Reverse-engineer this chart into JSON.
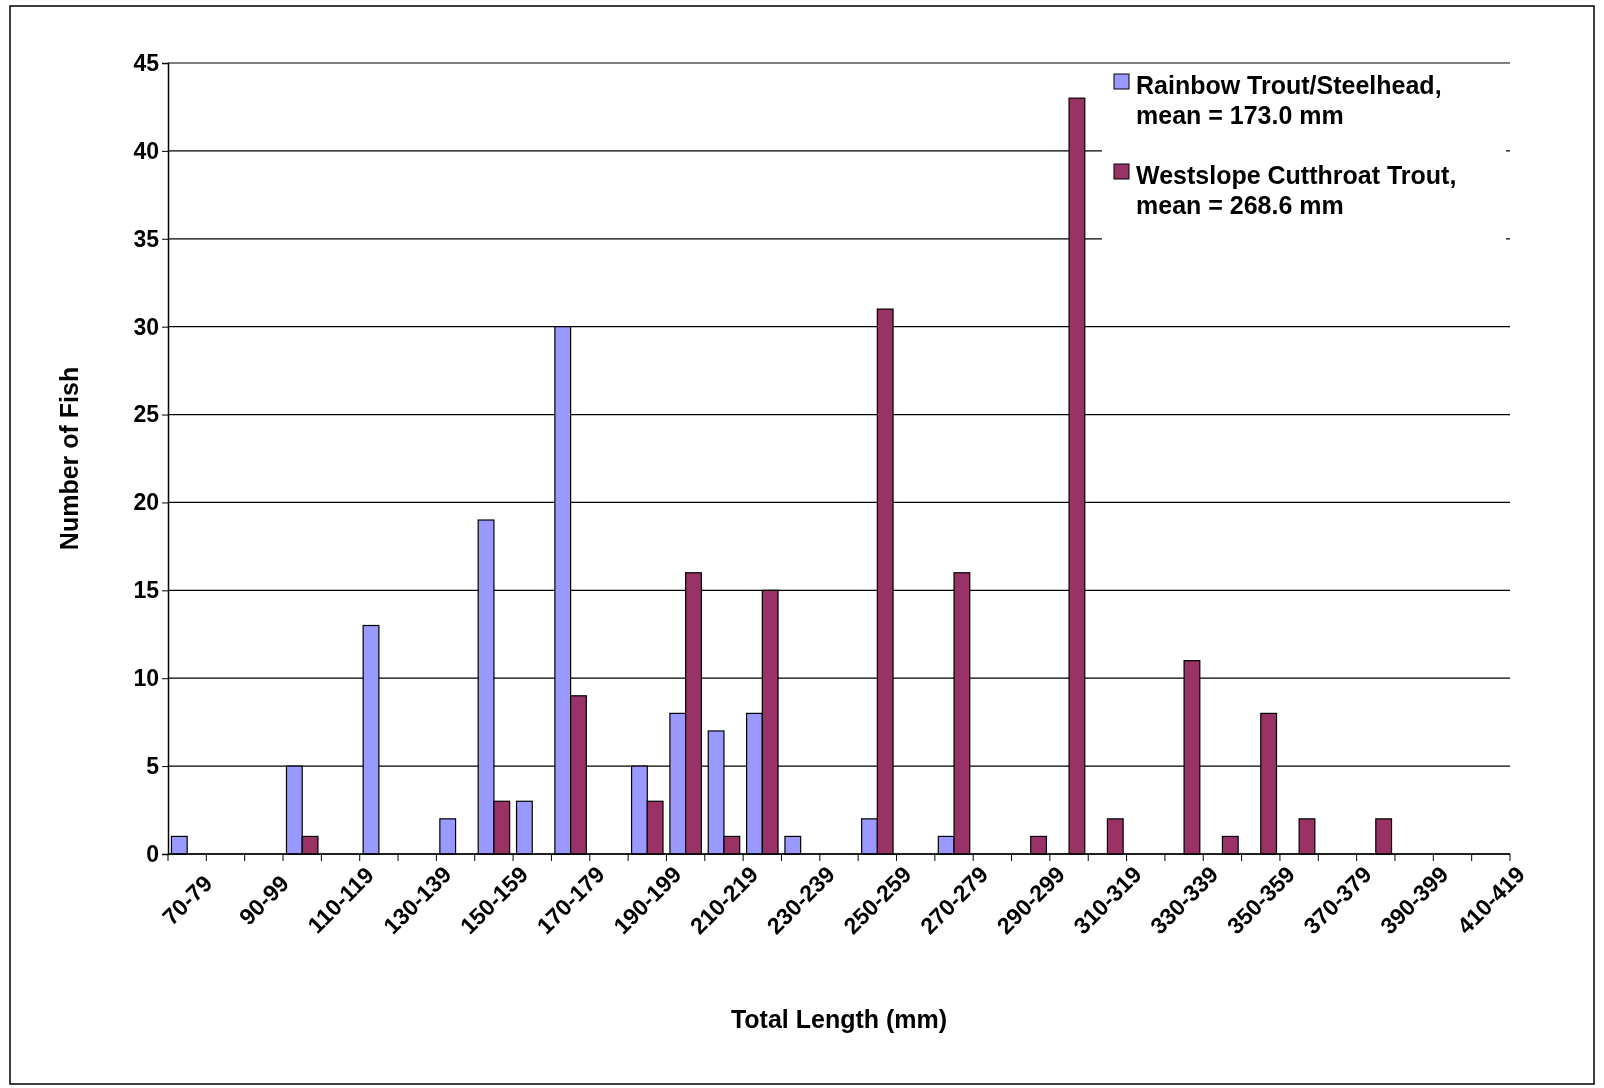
{
  "chart_data": {
    "type": "bar",
    "xlabel": "Total Length (mm)",
    "ylabel": "Number of Fish",
    "categories": [
      "70-79",
      null,
      "90-99",
      null,
      "110-119",
      null,
      "130-139",
      null,
      "150-159",
      null,
      "170-179",
      null,
      "190-199",
      null,
      "210-219",
      null,
      "230-239",
      null,
      "250-259",
      null,
      "270-279",
      null,
      "290-299",
      null,
      "310-319",
      null,
      "330-339",
      null,
      "350-359",
      null,
      "370-379",
      null,
      "390-399",
      null,
      "410-419"
    ],
    "series": [
      {
        "name": "Rainbow Trout/Steelhead, mean = 173.0 mm",
        "color": "#9999ff",
        "values": [
          1,
          0,
          0,
          5,
          0,
          13,
          0,
          2,
          19,
          3,
          30,
          0,
          5,
          8,
          7,
          8,
          1,
          0,
          2,
          0,
          1,
          0,
          0,
          0,
          0,
          0,
          0,
          0,
          0,
          0,
          0,
          0,
          0,
          0,
          0
        ]
      },
      {
        "name": "Westslope Cutthroat Trout, mean = 268.6 mm",
        "color": "#993366",
        "values": [
          0,
          0,
          0,
          1,
          0,
          0,
          0,
          0,
          3,
          0,
          9,
          0,
          3,
          16,
          1,
          15,
          0,
          0,
          31,
          0,
          16,
          0,
          1,
          43,
          2,
          0,
          11,
          1,
          8,
          2,
          0,
          2,
          0,
          0,
          0
        ]
      }
    ],
    "ylim": [
      0,
      45
    ],
    "yticks": [
      0,
      5,
      10,
      15,
      20,
      25,
      30,
      35,
      40,
      45
    ],
    "grid": "y",
    "legend": "top right"
  }
}
